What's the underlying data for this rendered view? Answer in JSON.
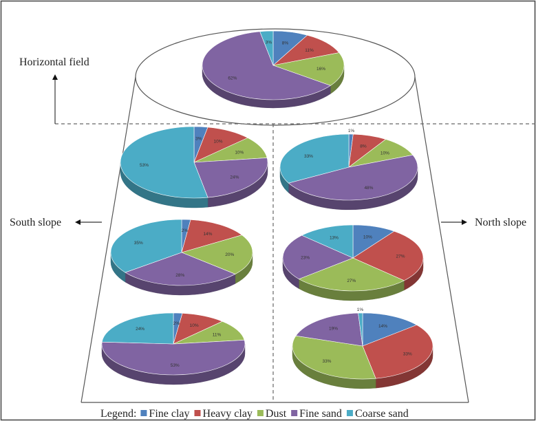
{
  "labels": {
    "horizontal": "Horizontal field",
    "south": "South slope",
    "north": "North slope"
  },
  "legend": {
    "title": "Legend:",
    "items": [
      {
        "name": "Fine clay",
        "color": "#4f81bd"
      },
      {
        "name": "Heavy clay",
        "color": "#c0504d"
      },
      {
        "name": "Dust",
        "color": "#9bbb59"
      },
      {
        "name": "Fine sand",
        "color": "#8064a2"
      },
      {
        "name": "Coarse sand",
        "color": "#4bacc6"
      }
    ]
  },
  "chart_data": [
    {
      "type": "pie",
      "position": "horizontal field",
      "categories": [
        "Fine clay",
        "Heavy clay",
        "Dust",
        "Fine sand",
        "Coarse sand"
      ],
      "values": [
        8,
        11,
        16,
        62,
        3
      ],
      "labels": [
        "8%",
        "11%",
        "16%",
        "62%",
        "3%"
      ]
    },
    {
      "type": "pie",
      "position": "south slope top",
      "categories": [
        "Fine clay",
        "Heavy clay",
        "Dust",
        "Fine sand",
        "Coarse sand"
      ],
      "values": [
        3,
        10,
        10,
        24,
        53
      ],
      "labels": [
        "3%",
        "10%",
        "10%",
        "24%",
        "53%"
      ]
    },
    {
      "type": "pie",
      "position": "north slope top",
      "categories": [
        "Fine clay",
        "Heavy clay",
        "Dust",
        "Fine sand",
        "Coarse sand"
      ],
      "values": [
        1,
        8,
        10,
        48,
        33
      ],
      "labels": [
        "1%",
        "8%",
        "10%",
        "48%",
        "33%"
      ]
    },
    {
      "type": "pie",
      "position": "south slope middle",
      "categories": [
        "Fine clay",
        "Heavy clay",
        "Dust",
        "Fine sand",
        "Coarse sand"
      ],
      "values": [
        2,
        14,
        20,
        28,
        35
      ],
      "labels": [
        "2%",
        "14%",
        "20%",
        "28%",
        "35%"
      ]
    },
    {
      "type": "pie",
      "position": "north slope middle",
      "categories": [
        "Fine clay",
        "Heavy clay",
        "Dust",
        "Fine sand",
        "Coarse sand"
      ],
      "values": [
        10,
        27,
        27,
        23,
        13
      ],
      "labels": [
        "10%",
        "27%",
        "27%",
        "23%",
        "13%"
      ]
    },
    {
      "type": "pie",
      "position": "south slope bottom",
      "categories": [
        "Fine clay",
        "Heavy clay",
        "Dust",
        "Fine sand",
        "Coarse sand"
      ],
      "values": [
        2,
        10,
        11,
        53,
        24
      ],
      "labels": [
        "2%",
        "10%",
        "11%",
        "53%",
        "24%"
      ]
    },
    {
      "type": "pie",
      "position": "north slope bottom",
      "categories": [
        "Fine clay",
        "Heavy clay",
        "Dust",
        "Fine sand",
        "Coarse sand"
      ],
      "values": [
        14,
        33,
        33,
        19,
        1
      ],
      "labels": [
        "14%",
        "33%",
        "33%",
        "19%",
        "1%"
      ]
    }
  ]
}
